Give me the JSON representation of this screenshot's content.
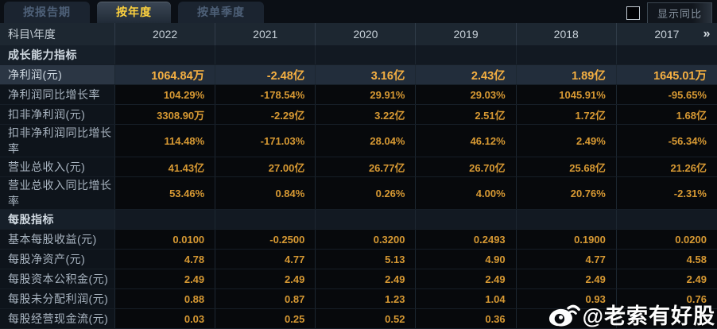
{
  "tabs": [
    {
      "label": "按报告期",
      "active": false
    },
    {
      "label": "按年度",
      "active": true
    },
    {
      "label": "按单季度",
      "active": false
    }
  ],
  "controls": {
    "compare_checkbox_checked": false,
    "compare_button_label": "显示同比"
  },
  "header": {
    "corner_label": "科目\\年度",
    "years": [
      "2022",
      "2021",
      "2020",
      "2019",
      "2018",
      "2017"
    ],
    "more_icon": "»"
  },
  "table": {
    "rows": [
      {
        "type": "section",
        "label": "成长能力指标",
        "values": [
          "",
          "",
          "",
          "",
          "",
          ""
        ]
      },
      {
        "type": "data",
        "highlight": true,
        "label": "净利润(元)",
        "values": [
          "1064.84万",
          "-2.48亿",
          "3.16亿",
          "2.43亿",
          "1.89亿",
          "1645.01万"
        ]
      },
      {
        "type": "data",
        "label": "净利润同比增长率",
        "values": [
          "104.29%",
          "-178.54%",
          "29.91%",
          "29.03%",
          "1045.91%",
          "-95.65%"
        ]
      },
      {
        "type": "data",
        "label": "扣非净利润(元)",
        "values": [
          "3308.90万",
          "-2.29亿",
          "3.22亿",
          "2.51亿",
          "1.72亿",
          "1.68亿"
        ]
      },
      {
        "type": "data",
        "label": "扣非净利润同比增长率",
        "values": [
          "114.48%",
          "-171.03%",
          "28.04%",
          "46.12%",
          "2.49%",
          "-56.34%"
        ]
      },
      {
        "type": "data",
        "label": "营业总收入(元)",
        "values": [
          "41.43亿",
          "27.00亿",
          "26.77亿",
          "26.70亿",
          "25.68亿",
          "21.26亿"
        ]
      },
      {
        "type": "data",
        "label": "营业总收入同比增长率",
        "values": [
          "53.46%",
          "0.84%",
          "0.26%",
          "4.00%",
          "20.76%",
          "-2.31%"
        ]
      },
      {
        "type": "section",
        "label": "每股指标",
        "values": [
          "",
          "",
          "",
          "",
          "",
          ""
        ]
      },
      {
        "type": "data",
        "label": "基本每股收益(元)",
        "values": [
          "0.0100",
          "-0.2500",
          "0.3200",
          "0.2493",
          "0.1900",
          "0.0200"
        ]
      },
      {
        "type": "data",
        "label": "每股净资产(元)",
        "values": [
          "4.78",
          "4.77",
          "5.13",
          "4.90",
          "4.77",
          "4.58"
        ]
      },
      {
        "type": "data",
        "label": "每股资本公积金(元)",
        "values": [
          "2.49",
          "2.49",
          "2.49",
          "2.49",
          "2.49",
          "2.49"
        ]
      },
      {
        "type": "data",
        "label": "每股未分配利润(元)",
        "values": [
          "0.88",
          "0.87",
          "1.23",
          "1.04",
          "0.93",
          "0.76"
        ]
      },
      {
        "type": "data",
        "label": "每股经营现金流(元)",
        "values": [
          "0.03",
          "0.25",
          "0.52",
          "0.36",
          "",
          ""
        ]
      }
    ]
  },
  "watermark": {
    "icon": "weibo-icon",
    "text": "@老索有好股"
  },
  "colors": {
    "accent_gold": "#ffd33e",
    "value_gold": "#d79933",
    "highlight_value_gold": "#f5b042",
    "header_bg": "#1d2731",
    "highlight_row_bg": "#222d3b",
    "active_tab_text": "#ffd33e"
  }
}
